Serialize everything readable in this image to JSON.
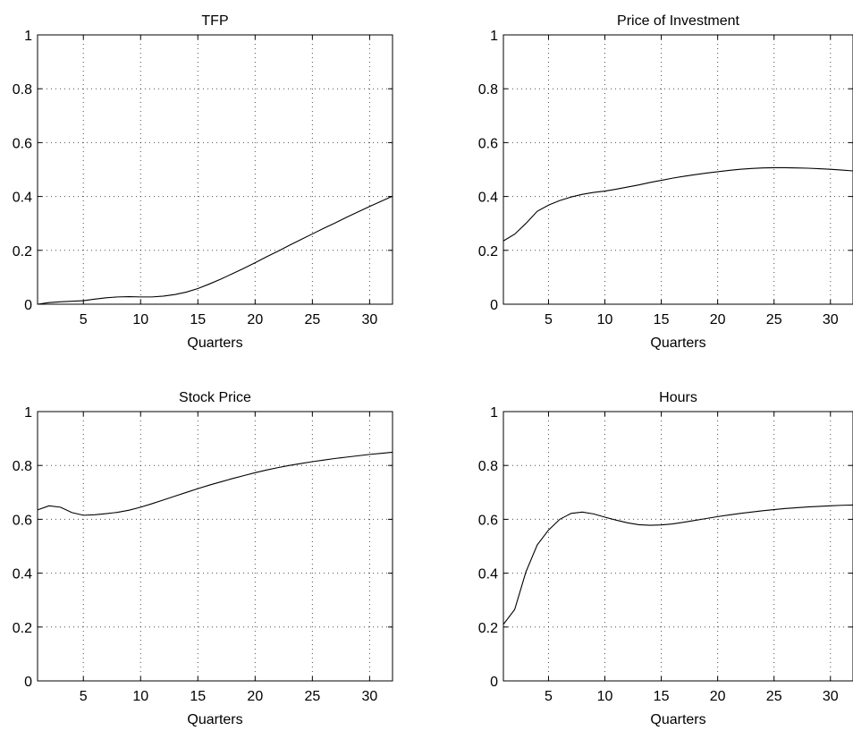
{
  "chart_data": [
    {
      "type": "line",
      "title": "TFP",
      "xlabel": "Quarters",
      "ylabel": "",
      "xlim": [
        1,
        32
      ],
      "ylim": [
        0,
        1
      ],
      "xticks": [
        5,
        10,
        15,
        20,
        25,
        30
      ],
      "yticks": [
        0,
        0.2,
        0.4,
        0.6,
        0.8,
        1
      ],
      "yticklabels": [
        "0",
        "0.2",
        "0.4",
        "0.6",
        "0.8",
        "1"
      ],
      "grid": true,
      "series": [
        {
          "x": [
            1,
            2,
            3,
            4,
            5,
            6,
            7,
            8,
            9,
            10,
            11,
            12,
            13,
            14,
            15,
            16,
            17,
            18,
            19,
            20,
            21,
            22,
            23,
            24,
            25,
            26,
            27,
            28,
            29,
            30,
            31,
            32
          ],
          "values": [
            0.0,
            0.006,
            0.009,
            0.011,
            0.013,
            0.019,
            0.024,
            0.027,
            0.028,
            0.027,
            0.027,
            0.03,
            0.036,
            0.045,
            0.058,
            0.075,
            0.093,
            0.113,
            0.133,
            0.154,
            0.176,
            0.197,
            0.219,
            0.24,
            0.261,
            0.282,
            0.302,
            0.323,
            0.343,
            0.363,
            0.382,
            0.401
          ]
        }
      ]
    },
    {
      "type": "line",
      "title": "Price of Investment",
      "xlabel": "Quarters",
      "ylabel": "",
      "xlim": [
        1,
        32
      ],
      "ylim": [
        0,
        1
      ],
      "xticks": [
        5,
        10,
        15,
        20,
        25,
        30
      ],
      "yticks": [
        0,
        0.2,
        0.4,
        0.6,
        0.8,
        1
      ],
      "yticklabels": [
        "0",
        "0.2",
        "0.4",
        "0.6",
        "0.8",
        "1"
      ],
      "grid": true,
      "series": [
        {
          "x": [
            1,
            2,
            3,
            4,
            5,
            6,
            7,
            8,
            9,
            10,
            11,
            12,
            13,
            14,
            15,
            16,
            17,
            18,
            19,
            20,
            21,
            22,
            23,
            24,
            25,
            26,
            27,
            28,
            29,
            30,
            31,
            32
          ],
          "values": [
            0.235,
            0.26,
            0.3,
            0.345,
            0.368,
            0.385,
            0.398,
            0.408,
            0.415,
            0.42,
            0.427,
            0.435,
            0.443,
            0.452,
            0.46,
            0.468,
            0.475,
            0.481,
            0.487,
            0.492,
            0.497,
            0.501,
            0.504,
            0.506,
            0.507,
            0.507,
            0.506,
            0.505,
            0.503,
            0.501,
            0.498,
            0.495
          ]
        }
      ]
    },
    {
      "type": "line",
      "title": "Stock Price",
      "xlabel": "Quarters",
      "ylabel": "",
      "xlim": [
        1,
        32
      ],
      "ylim": [
        0,
        1
      ],
      "xticks": [
        5,
        10,
        15,
        20,
        25,
        30
      ],
      "yticks": [
        0,
        0.2,
        0.4,
        0.6,
        0.8,
        1
      ],
      "yticklabels": [
        "0",
        "0.2",
        "0.4",
        "0.6",
        "0.8",
        "1"
      ],
      "grid": true,
      "series": [
        {
          "x": [
            1,
            2,
            3,
            4,
            5,
            6,
            7,
            8,
            9,
            10,
            11,
            12,
            13,
            14,
            15,
            16,
            17,
            18,
            19,
            20,
            21,
            22,
            23,
            24,
            25,
            26,
            27,
            28,
            29,
            30,
            31,
            32
          ],
          "values": [
            0.635,
            0.65,
            0.645,
            0.625,
            0.615,
            0.617,
            0.621,
            0.626,
            0.634,
            0.645,
            0.658,
            0.672,
            0.686,
            0.7,
            0.714,
            0.727,
            0.739,
            0.751,
            0.762,
            0.773,
            0.783,
            0.792,
            0.8,
            0.807,
            0.814,
            0.82,
            0.826,
            0.831,
            0.836,
            0.841,
            0.845,
            0.849
          ]
        }
      ]
    },
    {
      "type": "line",
      "title": "Hours",
      "xlabel": "Quarters",
      "ylabel": "",
      "xlim": [
        1,
        32
      ],
      "ylim": [
        0,
        1
      ],
      "xticks": [
        5,
        10,
        15,
        20,
        25,
        30
      ],
      "yticks": [
        0,
        0.2,
        0.4,
        0.6,
        0.8,
        1
      ],
      "yticklabels": [
        "0",
        "0.2",
        "0.4",
        "0.6",
        "0.8",
        "1"
      ],
      "grid": true,
      "series": [
        {
          "x": [
            1,
            2,
            3,
            4,
            5,
            6,
            7,
            8,
            9,
            10,
            11,
            12,
            13,
            14,
            15,
            16,
            17,
            18,
            19,
            20,
            21,
            22,
            23,
            24,
            25,
            26,
            27,
            28,
            29,
            30,
            31,
            32
          ],
          "values": [
            0.21,
            0.265,
            0.405,
            0.505,
            0.56,
            0.6,
            0.622,
            0.627,
            0.62,
            0.608,
            0.597,
            0.587,
            0.58,
            0.578,
            0.579,
            0.583,
            0.589,
            0.596,
            0.603,
            0.61,
            0.616,
            0.622,
            0.627,
            0.632,
            0.636,
            0.64,
            0.643,
            0.646,
            0.648,
            0.65,
            0.652,
            0.653
          ]
        }
      ]
    }
  ]
}
